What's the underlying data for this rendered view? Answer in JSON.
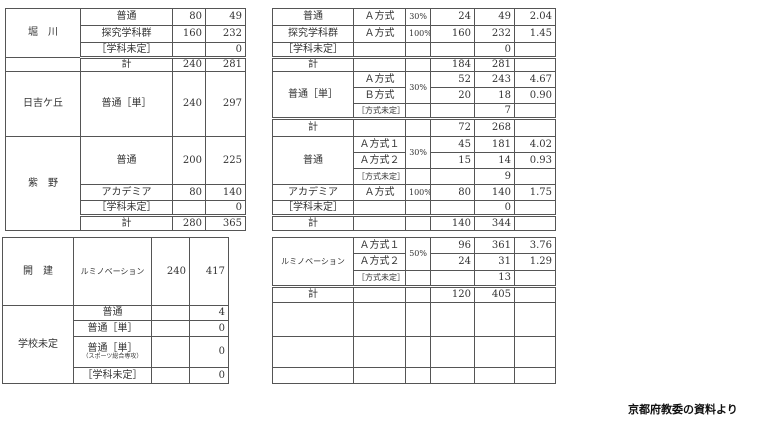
{
  "left": {
    "horikawa": {
      "school": "堀　川",
      "rows": [
        {
          "dept": "普通",
          "cap": "80",
          "app": "49"
        },
        {
          "dept": "探究学科群",
          "cap": "160",
          "app": "232"
        },
        {
          "dept": "［学科未定］",
          "cap": "",
          "app": "0"
        }
      ],
      "total": {
        "label": "計",
        "cap": "240",
        "app": "281"
      }
    },
    "hiyoshigaoka": {
      "school": "日吉ケ丘",
      "rows": [
        {
          "dept": "普通［単］",
          "cap": "240",
          "app": "297"
        }
      ]
    },
    "shino": {
      "school": "紫　野",
      "rows": [
        {
          "dept": "普通",
          "cap": "200",
          "app": "225"
        },
        {
          "dept": "アカデミア",
          "cap": "80",
          "app": "140"
        },
        {
          "dept": "［学科未定］",
          "cap": "",
          "app": "0"
        }
      ],
      "total": {
        "label": "計",
        "cap": "280",
        "app": "365"
      }
    },
    "kaiken": {
      "school": "開　建",
      "rows": [
        {
          "dept": "ルミノベーション",
          "cap": "240",
          "app": "417"
        }
      ]
    },
    "undecided": {
      "school": "学校未定",
      "rows": [
        {
          "dept": "普通",
          "cap": "",
          "app": "4"
        },
        {
          "dept": "普通［単］",
          "cap": "",
          "app": "0"
        },
        {
          "dept": "普通［単］",
          "note": "（スポーツ総合専攻）",
          "cap": "",
          "app": "0"
        },
        {
          "dept": "［学科未定］",
          "cap": "",
          "app": "0"
        }
      ]
    }
  },
  "right": {
    "horikawa": {
      "rows": [
        {
          "dept": "普通",
          "method": "Ａ方式",
          "pct": "30%",
          "cap": "24",
          "app": "49",
          "ratio": "2.04"
        },
        {
          "dept": "探究学科群",
          "method": "Ａ方式",
          "pct": "100%",
          "cap": "160",
          "app": "232",
          "ratio": "1.45"
        },
        {
          "dept": "［学科未定］",
          "method": "",
          "pct": "",
          "cap": "",
          "app": "0",
          "ratio": ""
        }
      ],
      "total": {
        "label": "計",
        "cap": "184",
        "app": "281"
      }
    },
    "hiyoshigaoka": {
      "dept": "普通［単］",
      "pct": "30%",
      "rows": [
        {
          "method": "Ａ方式",
          "cap": "52",
          "app": "243",
          "ratio": "4.67"
        },
        {
          "method": "Ｂ方式",
          "cap": "20",
          "app": "18",
          "ratio": "0.90"
        },
        {
          "method": "［方式未定］",
          "cap": "",
          "app": "7",
          "ratio": ""
        }
      ],
      "total": {
        "label": "計",
        "cap": "72",
        "app": "268"
      }
    },
    "shino": {
      "dept": "普通",
      "pct": "30%",
      "rows": [
        {
          "method": "Ａ方式１",
          "cap": "45",
          "app": "181",
          "ratio": "4.02"
        },
        {
          "method": "Ａ方式２",
          "cap": "15",
          "app": "14",
          "ratio": "0.93"
        },
        {
          "method": "［方式未定］",
          "cap": "",
          "app": "9",
          "ratio": ""
        }
      ],
      "academia": {
        "dept": "アカデミア",
        "method": "Ａ方式",
        "pct": "100%",
        "cap": "80",
        "app": "140",
        "ratio": "1.75"
      },
      "undecided": {
        "dept": "［学科未定］",
        "app": "0"
      },
      "total": {
        "label": "計",
        "cap": "140",
        "app": "344"
      }
    },
    "kaiken": {
      "dept": "ルミノベーション",
      "pct": "50%",
      "rows": [
        {
          "method": "Ａ方式１",
          "cap": "96",
          "app": "361",
          "ratio": "3.76"
        },
        {
          "method": "Ａ方式２",
          "cap": "24",
          "app": "31",
          "ratio": "1.29"
        },
        {
          "method": "［方式未定］",
          "cap": "",
          "app": "13",
          "ratio": ""
        }
      ],
      "total": {
        "label": "計",
        "cap": "120",
        "app": "405"
      }
    }
  },
  "source": "京都府教委の資料より"
}
